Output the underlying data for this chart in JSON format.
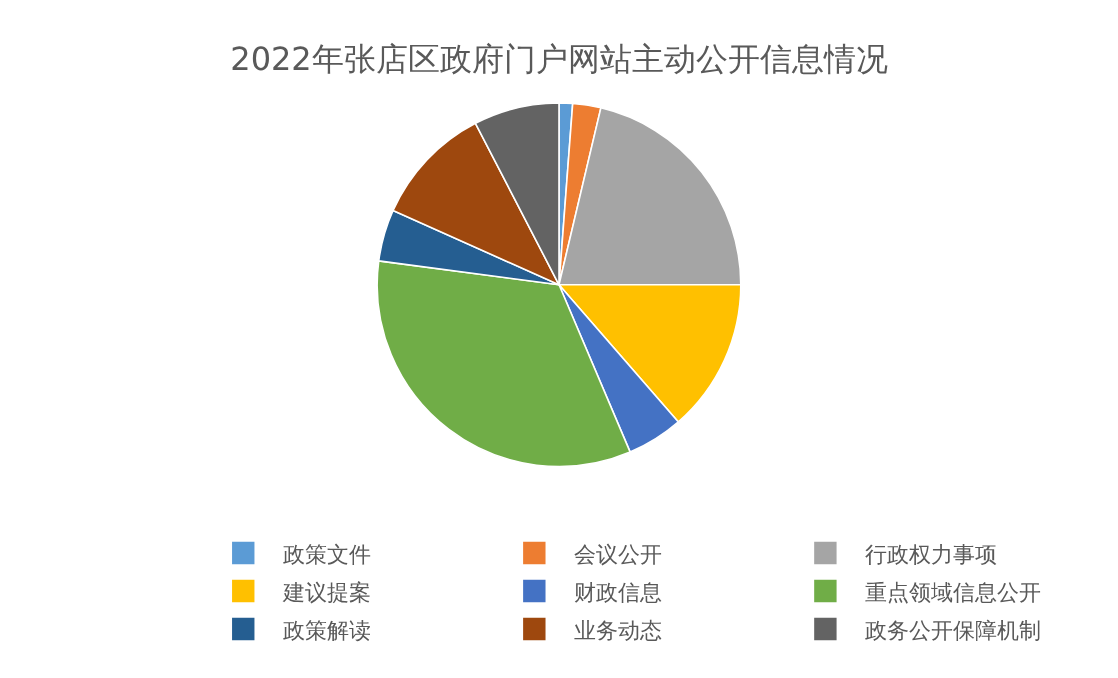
{
  "chart_data": {
    "type": "pie",
    "title": "2022年张店区政府门户网站主动公开信息情况",
    "categories": [
      "政策文件",
      "会议公开",
      "行政权力事项",
      "建议提案",
      "财政信息",
      "重点领域信息公开",
      "政策解读",
      "业务动态",
      "政务公开保障机制"
    ],
    "values": [
      1.2,
      2.5,
      21.3,
      13.6,
      5.0,
      33.5,
      4.6,
      10.7,
      7.6
    ],
    "colors": [
      "#5b9bd5",
      "#ed7d31",
      "#a5a5a5",
      "#ffc000",
      "#4472c4",
      "#70ad47",
      "#255e91",
      "#9e480e",
      "#636363"
    ],
    "legend": "bottom"
  }
}
